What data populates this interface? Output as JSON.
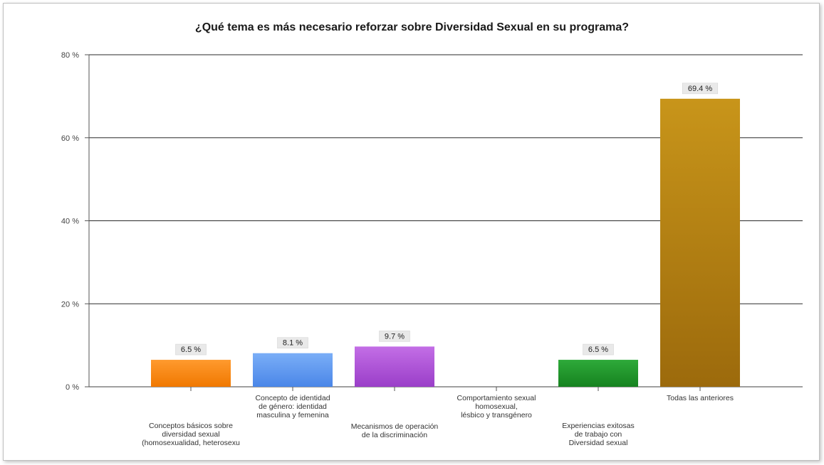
{
  "chart_data": {
    "type": "bar",
    "title": "¿Qué tema es más necesario reforzar sobre Diversidad Sexual  en su programa?",
    "xlabel": "",
    "ylabel": "",
    "ylim": [
      0,
      80
    ],
    "yticks": [
      0,
      20,
      40,
      60,
      80
    ],
    "ytick_labels": [
      "0 %",
      "20 %",
      "40 %",
      "60 %",
      "80 %"
    ],
    "grid": true,
    "categories": [
      "Conceptos básicos sobre diversidad sexual (homosexualidad, heterosexu",
      "Concepto de identidad de género: identidad masculina y femenina",
      "Mecanismos de operación de la discriminación",
      "Comportamiento sexual homosexual, lésbico y transgénero",
      "Experiencias exitosas de trabajo con Diversidad sexual",
      "Todas las anteriores"
    ],
    "category_lines": [
      [
        "Conceptos básicos sobre",
        "diversidad sexual",
        "(homosexualidad, heterosexu"
      ],
      [
        "Concepto de identidad",
        "de género: identidad",
        "masculina y femenina"
      ],
      [
        "Mecanismos de operación",
        "de la discriminación"
      ],
      [
        "Comportamiento sexual",
        "homosexual,",
        "lésbico y transgénero"
      ],
      [
        "Experiencias exitosas",
        "de trabajo con",
        "Diversidad sexual"
      ],
      [
        "Todas las anteriores"
      ]
    ],
    "values": [
      6.5,
      8.1,
      9.7,
      0,
      6.5,
      69.4
    ],
    "data_labels": [
      "6.5 %",
      "8.1 %",
      "9.7 %",
      "",
      "6.5 %",
      "69.4 %"
    ],
    "colors": [
      [
        "#ff9a2e",
        "#f07800"
      ],
      [
        "#7aaef7",
        "#4a86e8"
      ],
      [
        "#c36ee6",
        "#9a3ec8"
      ],
      [
        "#cccccc",
        "#aaaaaa"
      ],
      [
        "#2eaa3a",
        "#16821f"
      ],
      [
        "#c8951a",
        "#9c6a0c"
      ]
    ]
  }
}
